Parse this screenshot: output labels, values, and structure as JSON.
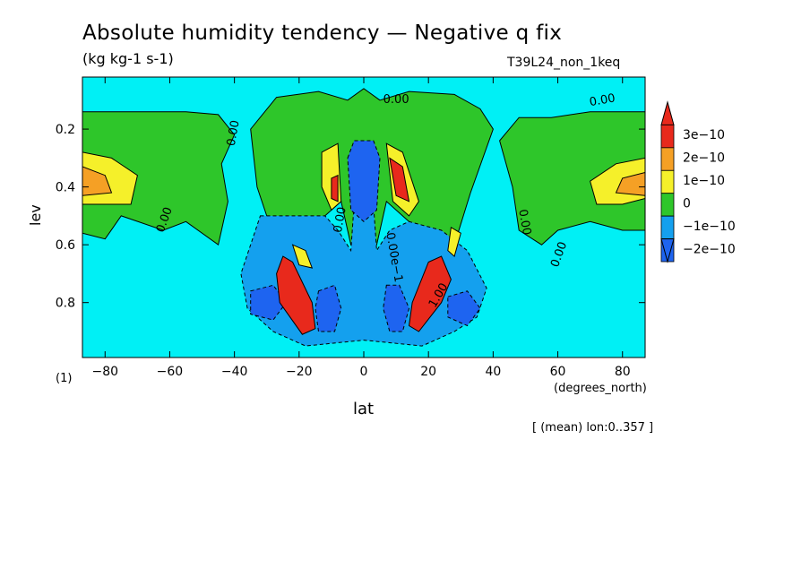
{
  "chart_data": {
    "type": "heatmap",
    "title": "Absolute humidity tendency — Negative q fix",
    "units": "(kg kg-1 s-1)",
    "run_label": "T39L24_non_1keq",
    "xlabel": "lat",
    "x_unit_label": "(degrees_north)",
    "ylabel": "lev",
    "panel_label": "(1)",
    "footer": "[ (mean) lon:0..357 ]",
    "xlim": [
      -87,
      87
    ],
    "ylim": [
      0.02,
      0.99
    ],
    "y_inverted": true,
    "x_ticks": [
      -80,
      -60,
      -40,
      -20,
      0,
      20,
      40,
      60,
      80
    ],
    "y_ticks": [
      0.2,
      0.4,
      0.6,
      0.8
    ],
    "x_tick_labels": [
      "−80",
      "−60",
      "−40",
      "−20",
      "0",
      "20",
      "40",
      "60",
      "80"
    ],
    "y_tick_labels": [
      "0.2",
      "0.4",
      "0.6",
      "0.8"
    ],
    "contour_labels": [
      "0.00",
      "0.00",
      "0.00",
      "0.00",
      "0.00",
      "0.00",
      "0.00",
      "0.00e−1",
      "1.00"
    ],
    "legend": {
      "levels": [
        "3e−10",
        "2e−10",
        "1e−10",
        "0",
        "−1e−10",
        "−2e−10"
      ],
      "colors": [
        "#e8291c",
        "#f5a025",
        "#f5f02a",
        "#2ec62a",
        "#14a0ee",
        "#1e64f0"
      ],
      "min_color": "#1e64f0",
      "max_color": "#e8291c"
    },
    "background_color": "#00f0f5",
    "blobs": [
      {
        "color": "#2ec62a",
        "pts": [
          [
            -87,
            0.14
          ],
          [
            -70,
            0.14
          ],
          [
            -55,
            0.14
          ],
          [
            -45,
            0.15
          ],
          [
            -40,
            0.22
          ],
          [
            -44,
            0.32
          ],
          [
            -42,
            0.45
          ],
          [
            -45,
            0.6
          ],
          [
            -55,
            0.52
          ],
          [
            -62,
            0.55
          ],
          [
            -75,
            0.5
          ],
          [
            -80,
            0.58
          ],
          [
            -87,
            0.56
          ]
        ]
      },
      {
        "color": "#2ec62a",
        "pts": [
          [
            87,
            0.14
          ],
          [
            70,
            0.14
          ],
          [
            58,
            0.16
          ],
          [
            48,
            0.16
          ],
          [
            42,
            0.24
          ],
          [
            46,
            0.4
          ],
          [
            48,
            0.55
          ],
          [
            55,
            0.6
          ],
          [
            60,
            0.55
          ],
          [
            70,
            0.52
          ],
          [
            80,
            0.55
          ],
          [
            87,
            0.55
          ]
        ]
      },
      {
        "color": "#2ec62a",
        "pts": [
          [
            -27,
            0.09
          ],
          [
            -14,
            0.07
          ],
          [
            -5,
            0.1
          ],
          [
            0,
            0.06
          ],
          [
            5,
            0.1
          ],
          [
            14,
            0.07
          ],
          [
            28,
            0.08
          ],
          [
            36,
            0.13
          ],
          [
            40,
            0.2
          ],
          [
            33,
            0.42
          ],
          [
            28,
            0.6
          ],
          [
            20,
            0.58
          ],
          [
            12,
            0.5
          ],
          [
            7,
            0.45
          ],
          [
            4,
            0.6
          ],
          [
            0,
            0.6
          ],
          [
            -4,
            0.6
          ],
          [
            -7,
            0.45
          ],
          [
            -12,
            0.5
          ],
          [
            -20,
            0.55
          ],
          [
            -30,
            0.5
          ],
          [
            -33,
            0.4
          ],
          [
            -35,
            0.2
          ]
        ]
      },
      {
        "color": "#f5f02a",
        "pts": [
          [
            -87,
            0.28
          ],
          [
            -78,
            0.3
          ],
          [
            -70,
            0.36
          ],
          [
            -72,
            0.46
          ],
          [
            -80,
            0.46
          ],
          [
            -87,
            0.46
          ]
        ]
      },
      {
        "color": "#f5a025",
        "pts": [
          [
            -87,
            0.33
          ],
          [
            -80,
            0.36
          ],
          [
            -78,
            0.42
          ],
          [
            -87,
            0.43
          ]
        ]
      },
      {
        "color": "#f5f02a",
        "pts": [
          [
            87,
            0.3
          ],
          [
            78,
            0.32
          ],
          [
            70,
            0.38
          ],
          [
            72,
            0.46
          ],
          [
            80,
            0.46
          ],
          [
            87,
            0.44
          ]
        ]
      },
      {
        "color": "#f5a025",
        "pts": [
          [
            87,
            0.35
          ],
          [
            80,
            0.37
          ],
          [
            78,
            0.42
          ],
          [
            87,
            0.43
          ]
        ]
      },
      {
        "color": "#f5f02a",
        "pts": [
          [
            -13,
            0.28
          ],
          [
            -8,
            0.25
          ],
          [
            -7,
            0.45
          ],
          [
            -10,
            0.48
          ],
          [
            -13,
            0.4
          ]
        ]
      },
      {
        "color": "#f5f02a",
        "pts": [
          [
            7,
            0.25
          ],
          [
            12,
            0.28
          ],
          [
            17,
            0.45
          ],
          [
            14,
            0.5
          ],
          [
            9,
            0.45
          ]
        ]
      },
      {
        "color": "#e8291c",
        "pts": [
          [
            -10,
            0.37
          ],
          [
            -8,
            0.36
          ],
          [
            -8,
            0.45
          ],
          [
            -10,
            0.44
          ]
        ]
      },
      {
        "color": "#e8291c",
        "pts": [
          [
            8,
            0.3
          ],
          [
            12,
            0.33
          ],
          [
            14,
            0.45
          ],
          [
            10,
            0.43
          ]
        ]
      },
      {
        "color": "#14a0ee",
        "pts": [
          [
            -32,
            0.5
          ],
          [
            -20,
            0.5
          ],
          [
            -12,
            0.5
          ],
          [
            -8,
            0.55
          ],
          [
            -4,
            0.62
          ],
          [
            -2,
            0.3
          ],
          [
            2,
            0.3
          ],
          [
            4,
            0.62
          ],
          [
            8,
            0.55
          ],
          [
            14,
            0.52
          ],
          [
            24,
            0.55
          ],
          [
            32,
            0.62
          ],
          [
            38,
            0.75
          ],
          [
            35,
            0.85
          ],
          [
            28,
            0.9
          ],
          [
            18,
            0.95
          ],
          [
            0,
            0.93
          ],
          [
            -18,
            0.95
          ],
          [
            -28,
            0.9
          ],
          [
            -36,
            0.82
          ],
          [
            -38,
            0.7
          ]
        ]
      },
      {
        "color": "#1e64f0",
        "pts": [
          [
            -5,
            0.3
          ],
          [
            -3,
            0.24
          ],
          [
            3,
            0.24
          ],
          [
            5,
            0.3
          ],
          [
            4,
            0.48
          ],
          [
            0,
            0.52
          ],
          [
            -4,
            0.48
          ]
        ]
      },
      {
        "color": "#1e64f0",
        "pts": [
          [
            -14,
            0.76
          ],
          [
            -9,
            0.74
          ],
          [
            -7,
            0.82
          ],
          [
            -9,
            0.9
          ],
          [
            -14,
            0.9
          ],
          [
            -15,
            0.82
          ]
        ]
      },
      {
        "color": "#1e64f0",
        "pts": [
          [
            7,
            0.74
          ],
          [
            11,
            0.74
          ],
          [
            14,
            0.82
          ],
          [
            12,
            0.9
          ],
          [
            8,
            0.9
          ],
          [
            6,
            0.82
          ]
        ]
      },
      {
        "color": "#1e64f0",
        "pts": [
          [
            -35,
            0.76
          ],
          [
            -28,
            0.74
          ],
          [
            -24,
            0.8
          ],
          [
            -28,
            0.86
          ],
          [
            -35,
            0.84
          ]
        ]
      },
      {
        "color": "#1e64f0",
        "pts": [
          [
            26,
            0.78
          ],
          [
            32,
            0.76
          ],
          [
            36,
            0.82
          ],
          [
            32,
            0.88
          ],
          [
            26,
            0.85
          ]
        ]
      },
      {
        "color": "#e8291c",
        "pts": [
          [
            -25,
            0.64
          ],
          [
            -22,
            0.66
          ],
          [
            -16,
            0.8
          ],
          [
            -15,
            0.89
          ],
          [
            -19,
            0.91
          ],
          [
            -26,
            0.8
          ],
          [
            -27,
            0.7
          ]
        ]
      },
      {
        "color": "#e8291c",
        "pts": [
          [
            20,
            0.66
          ],
          [
            24,
            0.64
          ],
          [
            27,
            0.72
          ],
          [
            24,
            0.8
          ],
          [
            17,
            0.9
          ],
          [
            14,
            0.88
          ],
          [
            15,
            0.8
          ]
        ]
      },
      {
        "color": "#f5f02a",
        "pts": [
          [
            -22,
            0.6
          ],
          [
            -18,
            0.62
          ],
          [
            -16,
            0.68
          ],
          [
            -20,
            0.67
          ]
        ]
      },
      {
        "color": "#f5f02a",
        "pts": [
          [
            27,
            0.54
          ],
          [
            30,
            0.56
          ],
          [
            28,
            0.64
          ],
          [
            26,
            0.62
          ]
        ]
      }
    ]
  }
}
